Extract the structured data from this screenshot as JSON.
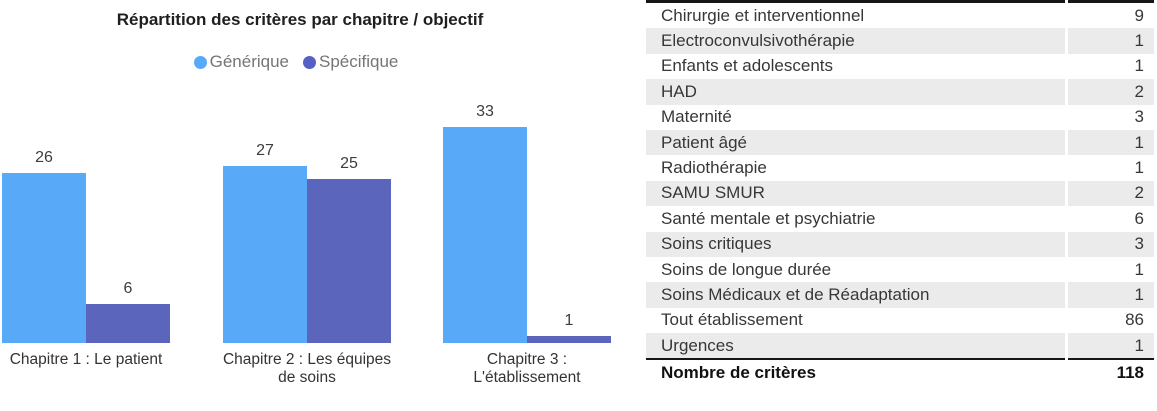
{
  "chart_data": [
    {
      "type": "bar",
      "title": "Répartition des critères par chapitre / objectif",
      "categories": [
        "Chapitre 1 : Le patient",
        "Chapitre 2 : Les équipes de soins",
        "Chapitre 3 : L'établissement"
      ],
      "category_label_lines": [
        [
          "Chapitre 1 : Le patient"
        ],
        [
          "Chapitre 2 : Les équipes",
          "de soins"
        ],
        [
          "Chapitre 3 :",
          "L'établissement"
        ]
      ],
      "series": [
        {
          "name": "Générique",
          "color": "#58aaf9",
          "values": [
            26,
            27,
            33
          ]
        },
        {
          "name": "Spécifique",
          "color": "#5a65bb",
          "dot_color": "#5562c4",
          "values": [
            6,
            25,
            1
          ]
        }
      ],
      "value_labels": true,
      "grid": false,
      "legend_position": "top",
      "ylim": [
        0,
        35
      ],
      "xlabel": "",
      "ylabel": ""
    },
    {
      "type": "table",
      "rows": [
        [
          "Chirurgie et interventionnel",
          9
        ],
        [
          "Electroconvulsivothérapie",
          1
        ],
        [
          "Enfants et adolescents",
          1
        ],
        [
          "HAD",
          2
        ],
        [
          "Maternité",
          3
        ],
        [
          "Patient âgé",
          1
        ],
        [
          "Radiothérapie",
          1
        ],
        [
          "SAMU SMUR",
          2
        ],
        [
          "Santé mentale et psychiatrie",
          6
        ],
        [
          "Soins critiques",
          3
        ],
        [
          "Soins de longue durée",
          1
        ],
        [
          "Soins Médicaux et de Réadaptation",
          1
        ],
        [
          "Tout établissement",
          86
        ],
        [
          "Urgences",
          1
        ]
      ],
      "footer": {
        "label": "Nombre de critères",
        "value": 118
      }
    }
  ],
  "colors": {
    "generic_bar": "#58aaf9",
    "specific_bar": "#5a65bb",
    "legend_text": "#757575",
    "table_alt_row": "#ebebeb",
    "table_border": "#161616"
  }
}
